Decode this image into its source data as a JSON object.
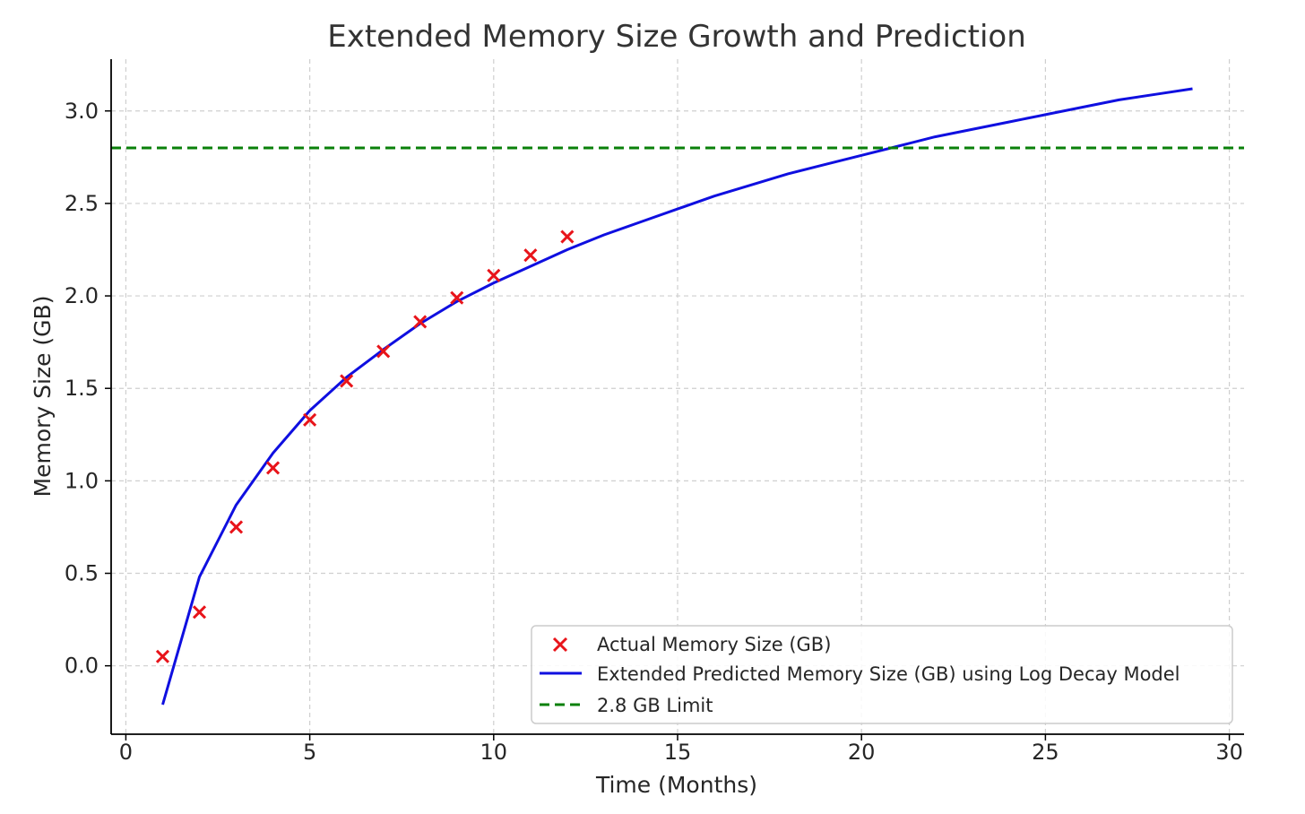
{
  "chart_data": {
    "type": "line",
    "title": "Extended Memory Size Growth and Prediction",
    "xlabel": "Time (Months)",
    "ylabel": "Memory Size (GB)",
    "xlim": [
      -0.4,
      30.4
    ],
    "ylim": [
      -0.37,
      3.28
    ],
    "xticks": [
      0,
      5,
      10,
      15,
      20,
      25,
      30
    ],
    "yticks": [
      0.0,
      0.5,
      1.0,
      1.5,
      2.0,
      2.5,
      3.0
    ],
    "xtick_labels": [
      "0",
      "5",
      "10",
      "15",
      "20",
      "25",
      "30"
    ],
    "ytick_labels": [
      "0.0",
      "0.5",
      "1.0",
      "1.5",
      "2.0",
      "2.5",
      "3.0"
    ],
    "grid": true,
    "legend_position": "lower-right",
    "series": [
      {
        "name": "Actual Memory Size (GB)",
        "kind": "scatter",
        "marker": "x",
        "color": "#e8141a",
        "x": [
          1,
          2,
          3,
          4,
          5,
          6,
          7,
          8,
          9,
          10,
          11,
          12
        ],
        "y": [
          0.05,
          0.29,
          0.75,
          1.07,
          1.33,
          1.54,
          1.7,
          1.86,
          1.99,
          2.11,
          2.22,
          2.32
        ]
      },
      {
        "name": "Extended Predicted Memory Size (GB) using Log Decay Model",
        "kind": "line",
        "color": "#0f0fe0",
        "x": [
          1,
          2,
          3,
          4,
          5,
          6,
          7,
          8,
          9,
          10,
          11,
          12,
          13,
          14,
          15,
          16,
          17,
          18,
          19,
          20,
          21,
          22,
          23,
          24,
          25,
          26,
          27,
          28,
          29
        ],
        "y": [
          -0.21,
          0.48,
          0.87,
          1.15,
          1.38,
          1.56,
          1.71,
          1.85,
          1.97,
          2.07,
          2.16,
          2.25,
          2.33,
          2.4,
          2.47,
          2.54,
          2.6,
          2.66,
          2.71,
          2.76,
          2.81,
          2.86,
          2.9,
          2.94,
          2.98,
          3.02,
          3.06,
          3.09,
          3.12
        ]
      },
      {
        "name": "2.8 GB Limit",
        "kind": "hline",
        "color": "#0a800a",
        "y": 2.8
      }
    ]
  }
}
